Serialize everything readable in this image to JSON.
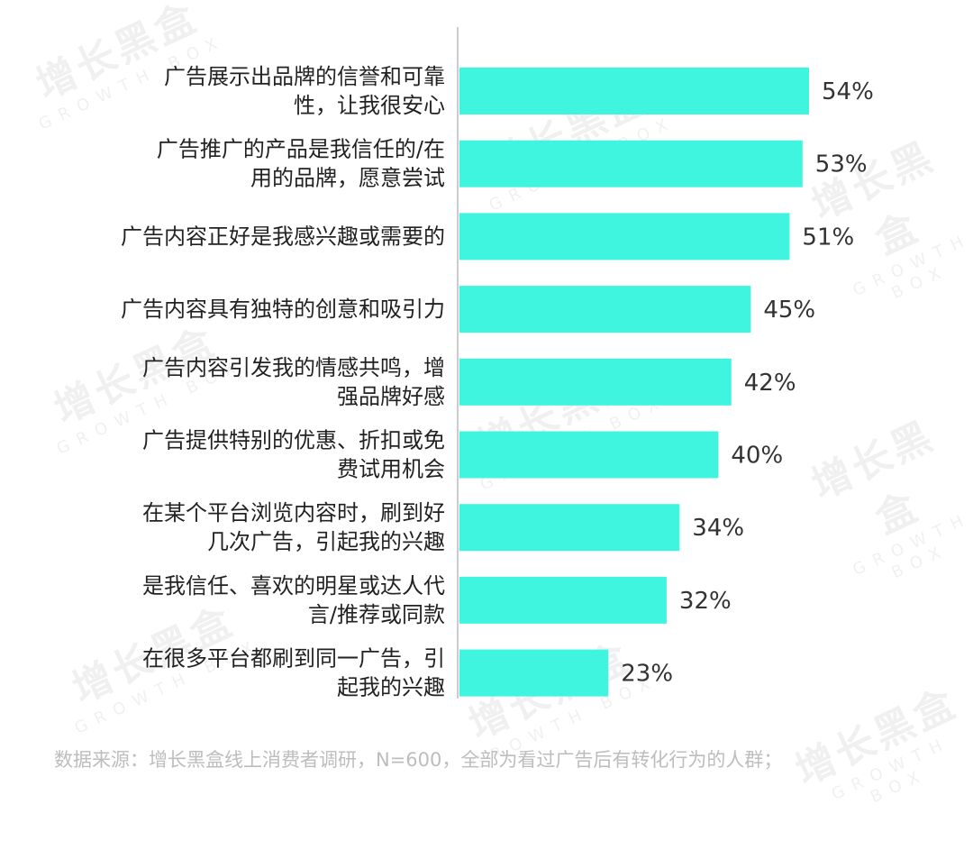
{
  "watermark": {
    "cn": "增长黑盒",
    "en": "GROWTH BOX"
  },
  "chart_data": {
    "type": "bar",
    "orientation": "horizontal",
    "categories": [
      [
        "广告展示出品牌的信誉和可靠",
        "性，让我很安心"
      ],
      [
        "广告推广的产品是我信任的/在",
        "用的品牌，愿意尝试"
      ],
      [
        "广告内容正好是我感兴趣或需要的"
      ],
      [
        "广告内容具有独特的创意和吸引力"
      ],
      [
        "广告内容引发我的情感共鸣，增",
        "强品牌好感"
      ],
      [
        "广告提供特别的优惠、折扣或免",
        "费试用机会"
      ],
      [
        "在某个平台浏览内容时，刷到好",
        "几次广告，引起我的兴趣"
      ],
      [
        "是我信任、喜欢的明星或达人代",
        "言/推荐或同款"
      ],
      [
        "在很多平台都刷到同一广告，引",
        "起我的兴趣"
      ]
    ],
    "values": [
      54,
      53,
      51,
      45,
      42,
      40,
      34,
      32,
      23
    ],
    "value_labels": [
      "54%",
      "53%",
      "51%",
      "45%",
      "42%",
      "40%",
      "34%",
      "32%",
      "23%"
    ],
    "bar_color": "#40f5df",
    "axis_color": "#cccccc",
    "label_color": "#222222",
    "value_label_color": "#333333",
    "grid": false,
    "legend": "none"
  },
  "source": "数据来源：增长黑盒线上消费者调研，N=600，全部为看过广告后有转化行为的人群；"
}
